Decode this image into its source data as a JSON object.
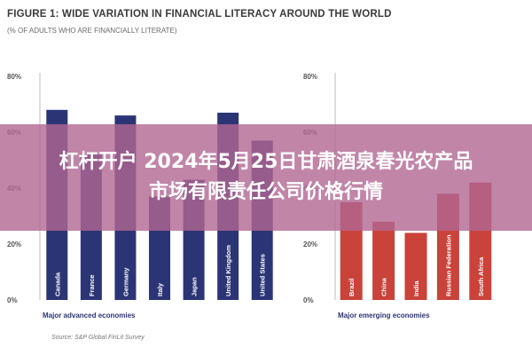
{
  "banner": {
    "line1": "杠杆开户 2024年5月25日甘肃酒泉春光农产品",
    "line2": "市场有限责任公司价格行情"
  },
  "colors": {
    "advanced": "#2b3576",
    "emerging": "#c9433b",
    "axis_text": "#555555",
    "group_label": "#2b3576"
  },
  "chart_data": [
    {
      "type": "bar",
      "title": "FIGURE 1: WIDE VARIATION IN FINANCIAL LITERACY AROUND THE WORLD",
      "subtitle": "(% OF ADULTS WHO ARE FINANCIALLY LITERATE)",
      "group_label": "Major advanced economies",
      "categories": [
        "Canada",
        "France",
        "Germany",
        "Italy",
        "Japan",
        "United Kingdom",
        "United States"
      ],
      "values": [
        68,
        52,
        66,
        37,
        43,
        67,
        57
      ],
      "ylim": [
        0,
        80
      ],
      "yticks": [
        "0%",
        "20%",
        "40%",
        "60%",
        "80%"
      ],
      "grid": false
    },
    {
      "type": "bar",
      "group_label": "Major emerging economies",
      "categories": [
        "Brazil",
        "China",
        "India",
        "Russian Federation",
        "South Africa"
      ],
      "values": [
        35,
        28,
        24,
        38,
        42
      ],
      "ylim": [
        0,
        80
      ],
      "yticks": [
        "0%",
        "20%",
        "40%",
        "60%",
        "80%"
      ],
      "grid": false
    }
  ],
  "source": "Source: S&P Global FinLit Survey"
}
